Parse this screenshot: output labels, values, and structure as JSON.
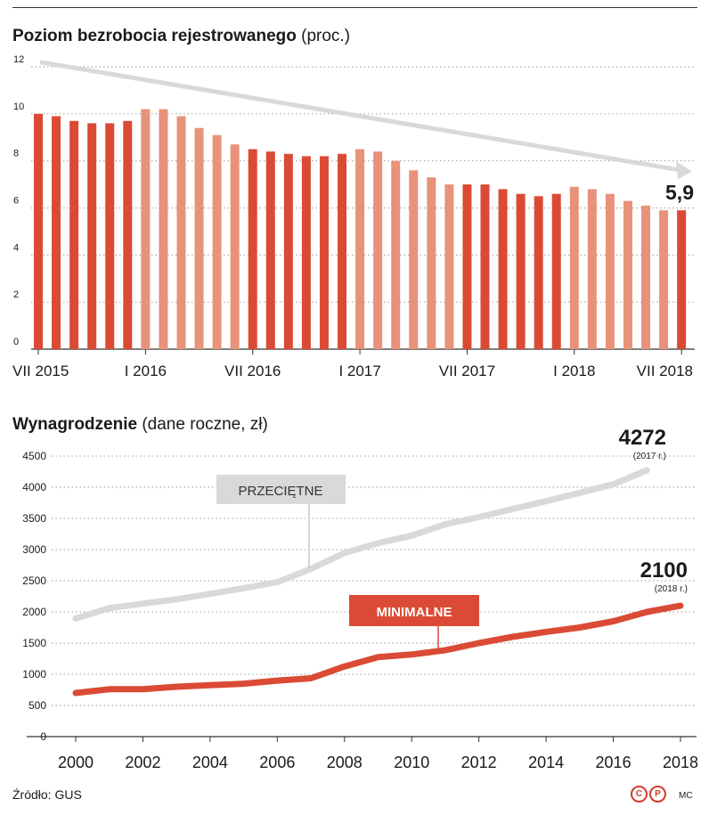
{
  "chart_data": [
    {
      "type": "bar",
      "title": "Poziom bezrobocia rejestrowanego",
      "subtitle": "(proc.)",
      "categories": [
        "VII 2015",
        "VIII 2015",
        "IX 2015",
        "X 2015",
        "XI 2015",
        "XII 2015",
        "I 2016",
        "II 2016",
        "III 2016",
        "IV 2016",
        "V 2016",
        "VI 2016",
        "VII 2016",
        "VIII 2016",
        "IX 2016",
        "X 2016",
        "XI 2016",
        "XII 2016",
        "I 2017",
        "II 2017",
        "III 2017",
        "IV 2017",
        "V 2017",
        "VI 2017",
        "VII 2017",
        "VIII 2017",
        "IX 2017",
        "X 2017",
        "XI 2017",
        "XII 2017",
        "I 2018",
        "II 2018",
        "III 2018",
        "IV 2018",
        "V 2018",
        "VI 2018",
        "VII 2018"
      ],
      "values": [
        10.0,
        9.9,
        9.7,
        9.6,
        9.6,
        9.7,
        10.2,
        10.2,
        9.9,
        9.4,
        9.1,
        8.7,
        8.5,
        8.4,
        8.3,
        8.2,
        8.2,
        8.3,
        8.5,
        8.4,
        8.0,
        7.6,
        7.3,
        7.0,
        7.0,
        7.0,
        6.8,
        6.6,
        6.5,
        6.6,
        6.9,
        6.8,
        6.6,
        6.3,
        6.1,
        5.9,
        5.9
      ],
      "tick_labels": [
        "VII 2015",
        "I 2016",
        "VII 2016",
        "I 2017",
        "VII 2017",
        "I 2018",
        "VII 2018"
      ],
      "y_ticks": [
        "12",
        "10",
        "8",
        "6",
        "4",
        "2",
        "0"
      ],
      "ylim": [
        0,
        12
      ],
      "annotation": "5,9",
      "colors": {
        "dark": "#db4a34",
        "light": "#e8927a",
        "arrow": "#d9d9d9"
      }
    },
    {
      "type": "line",
      "title": "Wynagrodzenie",
      "subtitle": "(dane roczne, zł)",
      "x": [
        2000,
        2001,
        2002,
        2003,
        2004,
        2005,
        2006,
        2007,
        2008,
        2009,
        2010,
        2011,
        2012,
        2013,
        2014,
        2015,
        2016,
        2017,
        2018
      ],
      "x_tick_labels": [
        "2000",
        "2002",
        "2004",
        "2006",
        "2008",
        "2010",
        "2012",
        "2014",
        "2016",
        "2018"
      ],
      "y_ticks": [
        "4500",
        "4000",
        "3500",
        "3000",
        "2500",
        "2000",
        "1500",
        "1000",
        "500",
        "0"
      ],
      "ylim": [
        0,
        4500
      ],
      "series": [
        {
          "name": "PRZECIĘTNE",
          "color": "#d9d9d9",
          "x": [
            2000,
            2001,
            2002,
            2003,
            2004,
            2005,
            2006,
            2007,
            2008,
            2009,
            2010,
            2011,
            2012,
            2013,
            2014,
            2015,
            2016,
            2017
          ],
          "values": [
            1894,
            2062,
            2133,
            2201,
            2290,
            2380,
            2477,
            2691,
            2944,
            3103,
            3225,
            3404,
            3522,
            3650,
            3777,
            3908,
            4047,
            4272
          ],
          "end_label": "4272",
          "end_note": "(2017 r.)"
        },
        {
          "name": "MINIMALNE",
          "color": "#db4a34",
          "x": [
            2000,
            2001,
            2002,
            2003,
            2004,
            2005,
            2006,
            2007,
            2008,
            2009,
            2010,
            2011,
            2012,
            2013,
            2014,
            2015,
            2016,
            2017,
            2018
          ],
          "values": [
            700,
            760,
            760,
            800,
            824,
            849,
            899,
            936,
            1126,
            1276,
            1317,
            1386,
            1500,
            1600,
            1680,
            1750,
            1850,
            2000,
            2100
          ],
          "end_label": "2100",
          "end_note": "(2018 r.)"
        }
      ]
    }
  ],
  "source": "Źródło: GUS",
  "logo_letters": [
    "C",
    "P"
  ],
  "author": "MC"
}
